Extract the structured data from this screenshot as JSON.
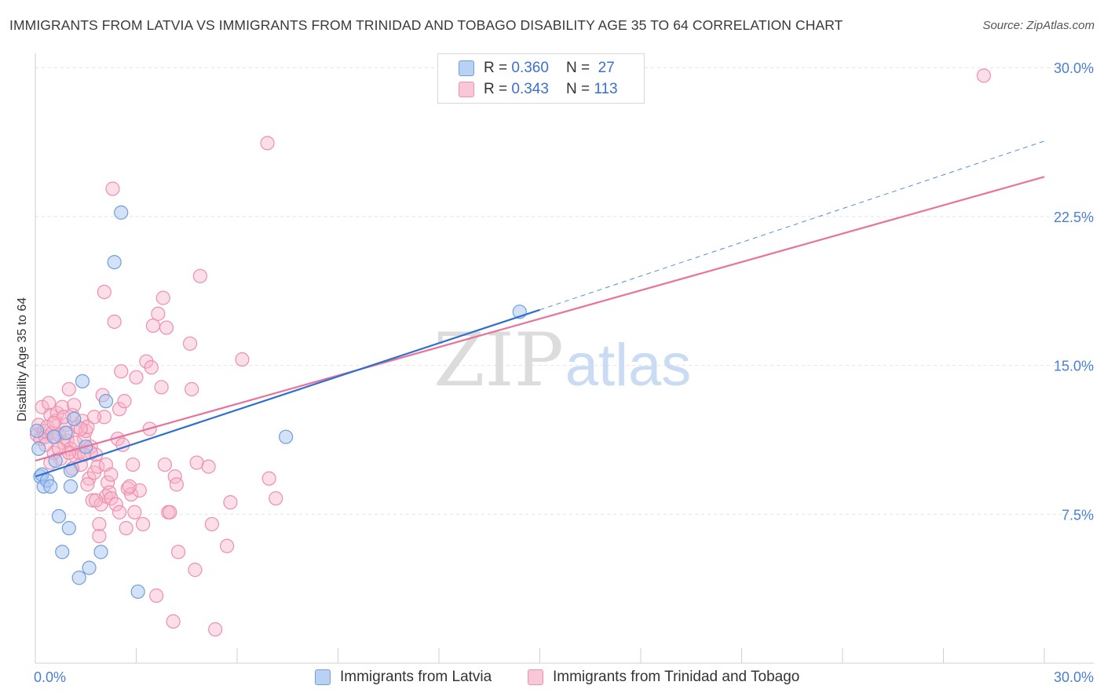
{
  "title": "IMMIGRANTS FROM LATVIA VS IMMIGRANTS FROM TRINIDAD AND TOBAGO DISABILITY AGE 35 TO 64 CORRELATION CHART",
  "source": "Source: ZipAtlas.com",
  "watermark": {
    "zip": "ZIP",
    "atlas": "atlas"
  },
  "colors": {
    "latvia_fill": "#a9c6ef",
    "latvia_stroke": "#6f9ee0",
    "latvia_line": "#2e6fcf",
    "tt_fill": "#f7b6ca",
    "tt_stroke": "#ee8fae",
    "tt_line": "#e8749c",
    "tick_text": "#4a7fd6",
    "grid": "#e4e4e4"
  },
  "legend": {
    "rows": [
      {
        "r_label": "R =",
        "r_value": "0.360",
        "n_label": "N =",
        "n_value": "27"
      },
      {
        "r_label": "R =",
        "r_value": "0.343",
        "n_label": "N =",
        "n_value": "113"
      }
    ]
  },
  "bottom_legend": [
    "Immigrants from Latvia",
    "Immigrants from Trinidad and Tobago"
  ],
  "chart_data": {
    "type": "scatter",
    "title": "IMMIGRANTS FROM LATVIA VS IMMIGRANTS FROM TRINIDAD AND TOBAGO DISABILITY AGE 35 TO 64 CORRELATION CHART",
    "xlabel": "",
    "ylabel": "Disability Age 35 to 64",
    "xlim": [
      0,
      30
    ],
    "ylim": [
      0,
      30.8
    ],
    "x_tick_labels": [
      {
        "value": 0,
        "label": "0.0%"
      },
      {
        "value": 30,
        "label": "30.0%"
      }
    ],
    "y_tick_labels": [
      {
        "value": 7.5,
        "label": "7.5%"
      },
      {
        "value": 15,
        "label": "15.0%"
      },
      {
        "value": 22.5,
        "label": "22.5%"
      },
      {
        "value": 30,
        "label": "30.0%"
      }
    ],
    "legend_position": "top-center",
    "grid": true,
    "series": [
      {
        "name": "Immigrants from Latvia",
        "R": 0.36,
        "N": 27,
        "trend": {
          "x0": 0,
          "y0": 9.4,
          "x1": 15,
          "y1": 17.8,
          "extend_dashed_to": 30,
          "extend_y": 26.3
        },
        "points": [
          [
            0.1,
            10.8
          ],
          [
            0.15,
            9.4
          ],
          [
            0.2,
            9.5
          ],
          [
            0.25,
            8.9
          ],
          [
            0.35,
            9.2
          ],
          [
            0.45,
            8.9
          ],
          [
            0.55,
            11.4
          ],
          [
            0.6,
            10.2
          ],
          [
            0.7,
            7.4
          ],
          [
            0.8,
            5.6
          ],
          [
            0.9,
            11.6
          ],
          [
            1.0,
            6.8
          ],
          [
            1.05,
            9.7
          ],
          [
            1.05,
            8.9
          ],
          [
            1.15,
            12.3
          ],
          [
            1.3,
            4.3
          ],
          [
            1.4,
            14.2
          ],
          [
            1.5,
            10.9
          ],
          [
            1.6,
            4.8
          ],
          [
            1.95,
            5.6
          ],
          [
            2.1,
            13.2
          ],
          [
            2.35,
            20.2
          ],
          [
            2.55,
            22.7
          ],
          [
            3.05,
            3.6
          ],
          [
            7.45,
            11.4
          ],
          [
            14.4,
            17.7
          ],
          [
            0.05,
            11.7
          ]
        ]
      },
      {
        "name": "Immigrants from Trinidad and Tobago",
        "R": 0.343,
        "N": 113,
        "trend": {
          "x0": 0,
          "y0": 10.2,
          "x1": 30,
          "y1": 24.5
        },
        "points": [
          [
            0.05,
            11.5
          ],
          [
            0.1,
            12.0
          ],
          [
            0.15,
            11.3
          ],
          [
            0.2,
            12.9
          ],
          [
            0.25,
            11.7
          ],
          [
            0.3,
            11.4
          ],
          [
            0.35,
            11.9
          ],
          [
            0.4,
            13.1
          ],
          [
            0.45,
            12.5
          ],
          [
            0.5,
            11.6
          ],
          [
            0.55,
            10.6
          ],
          [
            0.6,
            12.2
          ],
          [
            0.65,
            12.6
          ],
          [
            0.7,
            11.5
          ],
          [
            0.75,
            10.3
          ],
          [
            0.8,
            12.9
          ],
          [
            0.85,
            11.1
          ],
          [
            0.9,
            12.0
          ],
          [
            0.95,
            11.2
          ],
          [
            1.0,
            13.8
          ],
          [
            1.05,
            10.8
          ],
          [
            1.1,
            12.5
          ],
          [
            1.15,
            13.0
          ],
          [
            1.2,
            10.4
          ],
          [
            1.25,
            11.9
          ],
          [
            1.3,
            10.6
          ],
          [
            1.35,
            10.0
          ],
          [
            1.4,
            12.2
          ],
          [
            1.45,
            11.3
          ],
          [
            1.5,
            11.7
          ],
          [
            1.55,
            11.9
          ],
          [
            1.6,
            9.3
          ],
          [
            1.65,
            10.9
          ],
          [
            1.7,
            8.2
          ],
          [
            1.75,
            9.6
          ],
          [
            1.8,
            10.5
          ],
          [
            1.85,
            9.9
          ],
          [
            1.9,
            7.0
          ],
          [
            1.95,
            8.0
          ],
          [
            2.0,
            13.5
          ],
          [
            2.05,
            12.4
          ],
          [
            2.1,
            8.4
          ],
          [
            2.15,
            9.1
          ],
          [
            2.2,
            8.6
          ],
          [
            2.25,
            8.3
          ],
          [
            2.3,
            23.9
          ],
          [
            2.35,
            17.2
          ],
          [
            2.4,
            8.0
          ],
          [
            2.45,
            11.3
          ],
          [
            2.5,
            12.8
          ],
          [
            2.55,
            14.7
          ],
          [
            2.6,
            11.0
          ],
          [
            2.65,
            13.2
          ],
          [
            2.7,
            6.8
          ],
          [
            2.75,
            8.8
          ],
          [
            2.85,
            8.5
          ],
          [
            2.9,
            10.0
          ],
          [
            2.95,
            7.6
          ],
          [
            3.0,
            14.4
          ],
          [
            3.1,
            8.7
          ],
          [
            3.2,
            7.0
          ],
          [
            3.3,
            15.2
          ],
          [
            3.4,
            11.8
          ],
          [
            3.45,
            14.9
          ],
          [
            3.5,
            17.0
          ],
          [
            3.6,
            3.4
          ],
          [
            3.65,
            17.6
          ],
          [
            3.75,
            13.9
          ],
          [
            3.8,
            18.4
          ],
          [
            3.85,
            10.0
          ],
          [
            3.9,
            16.9
          ],
          [
            3.95,
            7.6
          ],
          [
            4.0,
            7.6
          ],
          [
            4.1,
            2.1
          ],
          [
            4.15,
            9.4
          ],
          [
            4.2,
            9.0
          ],
          [
            4.25,
            5.6
          ],
          [
            4.6,
            16.1
          ],
          [
            4.65,
            13.8
          ],
          [
            4.75,
            4.7
          ],
          [
            4.8,
            10.1
          ],
          [
            4.9,
            19.5
          ],
          [
            5.15,
            9.9
          ],
          [
            5.25,
            7.0
          ],
          [
            5.35,
            1.7
          ],
          [
            5.7,
            5.9
          ],
          [
            5.8,
            8.1
          ],
          [
            6.15,
            15.3
          ],
          [
            6.9,
            26.2
          ],
          [
            6.95,
            9.3
          ],
          [
            7.15,
            8.3
          ],
          [
            2.05,
            18.7
          ],
          [
            1.65,
            10.6
          ],
          [
            1.2,
            11.1
          ],
          [
            0.85,
            12.4
          ],
          [
            1.55,
            9.0
          ],
          [
            2.5,
            7.6
          ],
          [
            1.9,
            6.4
          ],
          [
            1.0,
            10.6
          ],
          [
            0.6,
            11.4
          ],
          [
            0.3,
            11.0
          ],
          [
            1.35,
            11.8
          ],
          [
            1.8,
            8.2
          ],
          [
            2.1,
            10.0
          ],
          [
            0.45,
            10.1
          ],
          [
            1.75,
            12.4
          ],
          [
            1.1,
            9.8
          ],
          [
            2.8,
            8.9
          ],
          [
            0.55,
            12.1
          ],
          [
            1.45,
            10.5
          ],
          [
            2.25,
            9.5
          ],
          [
            0.95,
            11.6
          ],
          [
            28.2,
            29.6
          ],
          [
            0.7,
            10.8
          ]
        ]
      }
    ]
  }
}
